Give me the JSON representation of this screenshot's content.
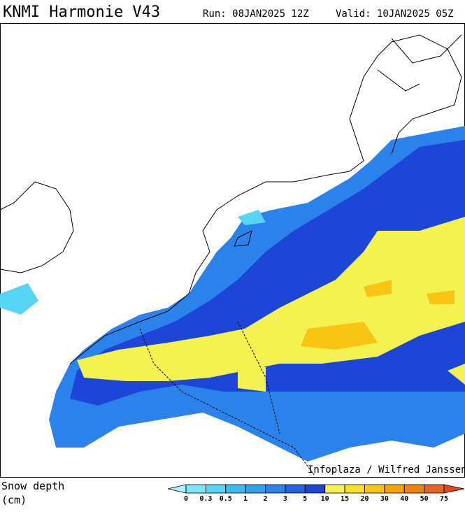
{
  "header": {
    "title": "KNMI Harmonie V43",
    "run": "Run: 08JAN2025 12Z",
    "valid": "Valid: 10JAN2025 05Z"
  },
  "credit": "Infoplaza / Wilfred Janssen",
  "legend": {
    "label_line1": "Snow depth",
    "label_line2": "(cm)",
    "ticks": [
      0,
      0.3,
      0.5,
      1,
      2,
      3,
      5,
      10,
      15,
      20,
      30,
      40,
      50,
      75
    ],
    "under_color": "#a8f4ff",
    "colors": [
      "#7ee6fa",
      "#55d4f4",
      "#38bdf0",
      "#2f9ff0",
      "#2a82ea",
      "#2463e2",
      "#1d45d8",
      "#f4f250",
      "#f8e028",
      "#f8c414",
      "#f8a400",
      "#f08400",
      "#e86420"
    ],
    "over_color": "#e04818"
  }
}
